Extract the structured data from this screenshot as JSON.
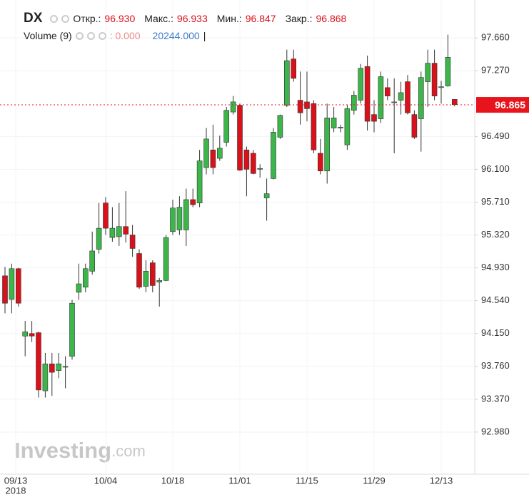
{
  "header": {
    "symbol": "DX",
    "quote": [
      {
        "label": "Откр.:",
        "value": "96.930"
      },
      {
        "label": "Макс.:",
        "value": "96.933"
      },
      {
        "label": "Мин.:",
        "value": "96.847"
      },
      {
        "label": "Закр.:",
        "value": "96.868"
      }
    ],
    "volume": {
      "label": "Volume (9)",
      "value": ": 0.000",
      "average": "20244.000",
      "cursor": "|"
    }
  },
  "watermark": {
    "brand": "Investing",
    "suffix": ".com"
  },
  "chart_data": {
    "type": "candlestick",
    "categories": [
      "09/13",
      null,
      null,
      null,
      null,
      null,
      null,
      null,
      null,
      null,
      null,
      null,
      null,
      null,
      null,
      "10/04",
      null,
      null,
      null,
      null,
      null,
      null,
      null,
      null,
      null,
      "10/18",
      null,
      null,
      null,
      null,
      null,
      null,
      null,
      null,
      null,
      "11/01",
      null,
      null,
      null,
      null,
      null,
      null,
      null,
      null,
      null,
      "11/15",
      null,
      null,
      null,
      null,
      null,
      null,
      null,
      null,
      null,
      "11/29",
      null,
      null,
      null,
      null,
      null,
      null,
      null,
      null,
      null,
      "12/13",
      null,
      null
    ],
    "year_label": "2018",
    "open": [
      94.835,
      94.555,
      94.92,
      94.12,
      94.15,
      94.16,
      93.47,
      93.79,
      93.71,
      93.75,
      93.88,
      94.64,
      94.7,
      94.89,
      95.15,
      95.7,
      95.29,
      95.3,
      95.42,
      95.32,
      95.1,
      94.71,
      94.99,
      94.76,
      94.78,
      95.36,
      95.38,
      95.38,
      95.74,
      95.7,
      96.12,
      96.33,
      96.23,
      96.42,
      96.78,
      96.86,
      96.33,
      96.29,
      96.1,
      95.76,
      95.99,
      96.48,
      96.86,
      97.41,
      96.92,
      96.9,
      96.88,
      96.29,
      96.08,
      96.59,
      96.59,
      96.39,
      96.8,
      96.92,
      97.32,
      96.75,
      96.7,
      97.07,
      96.89,
      96.92,
      97.14,
      96.75,
      96.7,
      97.14,
      97.36,
      97.07,
      97.09,
      96.93
    ],
    "high": [
      94.94,
      94.98,
      94.93,
      94.3,
      94.3,
      94.17,
      93.92,
      93.92,
      93.92,
      93.88,
      94.55,
      94.98,
      94.98,
      95.36,
      95.7,
      95.77,
      95.65,
      95.7,
      95.84,
      95.44,
      95.15,
      95.02,
      95.02,
      94.81,
      95.32,
      95.74,
      95.78,
      95.87,
      95.87,
      96.33,
      96.59,
      96.63,
      96.5,
      96.84,
      96.97,
      96.88,
      96.37,
      96.33,
      96.16,
      95.99,
      96.59,
      96.75,
      97.52,
      97.52,
      97.26,
      97.26,
      96.92,
      96.46,
      96.88,
      96.84,
      96.63,
      96.86,
      97.03,
      97.35,
      97.45,
      96.92,
      97.26,
      97.18,
      97.18,
      97.14,
      97.22,
      96.8,
      97.26,
      97.52,
      97.52,
      97.15,
      97.7,
      96.933
    ],
    "low": [
      94.39,
      94.39,
      94.47,
      93.88,
      94.05,
      93.39,
      93.39,
      93.41,
      93.62,
      93.5,
      93.84,
      94.55,
      94.64,
      94.85,
      95.1,
      95.32,
      95.24,
      95.19,
      95.23,
      95.06,
      94.68,
      94.64,
      94.64,
      94.47,
      94.77,
      95.32,
      95.32,
      95.19,
      95.65,
      95.65,
      96.04,
      96.04,
      96.2,
      96.37,
      96.75,
      96.08,
      95.78,
      96.04,
      96.0,
      95.49,
      95.98,
      96.46,
      96.84,
      97.14,
      96.63,
      96.67,
      96.29,
      96.04,
      95.93,
      96.54,
      96.54,
      96.33,
      96.75,
      96.88,
      96.56,
      96.54,
      96.65,
      96.92,
      96.29,
      96.75,
      96.75,
      96.46,
      96.31,
      96.84,
      96.92,
      96.88,
      97.08,
      96.847
    ],
    "close": [
      94.51,
      94.92,
      94.51,
      94.17,
      94.12,
      93.48,
      93.79,
      93.69,
      93.79,
      93.76,
      94.51,
      94.74,
      94.92,
      95.13,
      95.4,
      95.4,
      95.4,
      95.42,
      95.33,
      95.16,
      94.7,
      94.89,
      94.72,
      94.78,
      95.29,
      95.64,
      95.65,
      95.74,
      95.68,
      96.2,
      96.46,
      96.12,
      96.35,
      96.8,
      96.9,
      96.09,
      96.1,
      96.05,
      96.11,
      95.81,
      96.54,
      96.74,
      97.39,
      97.18,
      96.77,
      96.82,
      96.33,
      96.08,
      96.71,
      96.71,
      96.6,
      96.82,
      96.98,
      97.3,
      96.67,
      96.67,
      97.2,
      96.97,
      96.9,
      97.01,
      96.77,
      96.48,
      97.19,
      97.36,
      96.97,
      97.08,
      97.43,
      96.868
    ],
    "up_color": "#3cb54a",
    "down_color": "#d8111a",
    "ylim": [
      92.48,
      98.11
    ],
    "yticks": [
      {
        "value": 97.66,
        "label": "97.660"
      },
      {
        "value": 97.27,
        "label": "97.270"
      },
      {
        "value": 96.49,
        "label": "96.490"
      },
      {
        "value": 96.1,
        "label": "96.100"
      },
      {
        "value": 95.71,
        "label": "95.710"
      },
      {
        "value": 95.32,
        "label": "95.320"
      },
      {
        "value": 94.93,
        "label": "94.930"
      },
      {
        "value": 94.54,
        "label": "94.540"
      },
      {
        "value": 94.15,
        "label": "94.150"
      },
      {
        "value": 93.76,
        "label": "93.760"
      },
      {
        "value": 93.37,
        "label": "93.370"
      },
      {
        "value": 92.98,
        "label": "92.980"
      }
    ],
    "last_price": 96.865,
    "last_price_color": "#e8141c",
    "grid": true
  }
}
